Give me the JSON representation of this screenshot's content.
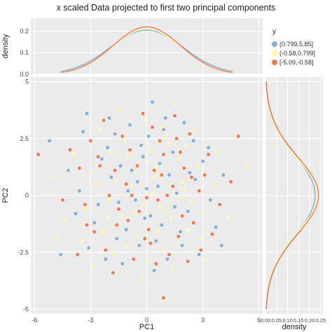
{
  "chart_data": {
    "type": "scatter",
    "title": "x scaled Data projected to first two principal components",
    "xlabel": "PC1",
    "ylabel": "PC2",
    "xlim": [
      -6.2,
      6.2
    ],
    "ylim": [
      -5.2,
      5.2
    ],
    "x_ticks": [
      "-6",
      "-3",
      "0",
      "3",
      "6"
    ],
    "x_tick_values": [
      -6,
      -3,
      0,
      3,
      6
    ],
    "y_ticks": [
      "-5",
      "-2.5",
      "0",
      "2.5",
      "5"
    ],
    "y_tick_values": [
      -5,
      -2.5,
      0,
      2.5,
      5
    ],
    "legend": {
      "title": "y",
      "position": "right",
      "entries": [
        "(0.799,5.85]",
        "(-0.58,0.799]",
        "[-5.09,-0.58]"
      ]
    },
    "colors": [
      "#7fb0d6",
      "#fdfbaa",
      "#f07a4a"
    ],
    "top_density": {
      "ylabel": "density",
      "ylim": [
        0,
        0.26
      ],
      "y_ticks": [
        "0.0",
        "0.1",
        "0.2"
      ],
      "y_tick_values": [
        0,
        0.1,
        0.2
      ],
      "mean": 0,
      "sd": [
        1.95,
        1.85,
        1.8
      ],
      "peak": [
        0.205,
        0.21,
        0.22
      ]
    },
    "right_density": {
      "xlabel": "density",
      "xlim": [
        0,
        0.26
      ],
      "x_ticks": [
        "0.00",
        "0.05",
        "0.10",
        "0.15",
        "0.20",
        "0.25"
      ],
      "x_tick_values": [
        0,
        0.05,
        0.1,
        0.15,
        0.2,
        0.25
      ],
      "mean": 0,
      "sd": [
        1.75,
        1.65,
        1.7
      ],
      "peak": [
        0.225,
        0.235,
        0.24
      ]
    },
    "series": [
      {
        "name": "(0.799,5.85]",
        "points": [
          [
            -4.6,
            -2.6
          ],
          [
            -3.2,
            3.6
          ],
          [
            -2.1,
            2.1
          ],
          [
            -1.5,
            -0.3
          ],
          [
            -0.8,
            1.1
          ],
          [
            0.2,
            -0.9
          ],
          [
            0.9,
            2.9
          ],
          [
            1.8,
            -1.6
          ],
          [
            2.6,
            0.7
          ],
          [
            3.4,
            -0.2
          ],
          [
            -2.8,
            -1.2
          ],
          [
            -1.9,
            0.8
          ],
          [
            -0.4,
            -2.2
          ],
          [
            0.6,
            0.4
          ],
          [
            1.4,
            1.9
          ],
          [
            2.2,
            -0.7
          ],
          [
            -3.6,
            0.2
          ],
          [
            -1.1,
            -1.5
          ],
          [
            0.1,
            2.6
          ],
          [
            1.1,
            -2.8
          ],
          [
            -2.4,
            1.6
          ],
          [
            3.0,
            1.5
          ],
          [
            -0.6,
            -0.2
          ],
          [
            0.8,
            -1.3
          ],
          [
            -1.7,
            2.7
          ],
          [
            2.5,
            2.4
          ],
          [
            -3.1,
            -2.3
          ],
          [
            1.6,
            0.1
          ],
          [
            -0.2,
            1.7
          ],
          [
            0.4,
            -3.3
          ],
          [
            4.1,
            0.9
          ],
          [
            -4.2,
            1.1
          ],
          [
            2.0,
            3.2
          ],
          [
            -1.3,
            -3.0
          ],
          [
            0.0,
            0.3
          ],
          [
            -2.6,
            -0.4
          ],
          [
            1.9,
            -2.2
          ],
          [
            -0.9,
            3.1
          ],
          [
            3.7,
            -1.4
          ],
          [
            -5.2,
            2.4
          ],
          [
            0.3,
            4.1
          ],
          [
            -1.6,
            -1.9
          ],
          [
            2.8,
            -2.6
          ],
          [
            -0.1,
            -1.0
          ],
          [
            1.2,
            0.9
          ],
          [
            -3.4,
            2.8
          ],
          [
            0.7,
            1.4
          ],
          [
            -2.2,
            -2.8
          ],
          [
            3.3,
            2.1
          ],
          [
            -0.5,
            0.6
          ],
          [
            2.3,
            1.0
          ],
          [
            -1.0,
            0.2
          ],
          [
            1.5,
            -0.5
          ],
          [
            -3.8,
            -0.8
          ],
          [
            0.5,
            -2.0
          ],
          [
            -2.0,
            3.4
          ],
          [
            4.0,
            -2.2
          ],
          [
            -0.3,
            2.2
          ],
          [
            1.0,
            3.4
          ],
          [
            -1.4,
            1.3
          ]
        ]
      },
      {
        "name": "(-0.58,0.799]",
        "points": [
          [
            -4.4,
            -1.1
          ],
          [
            -3.0,
            1.0
          ],
          [
            -2.3,
            -1.6
          ],
          [
            -1.2,
            2.4
          ],
          [
            -0.7,
            -0.8
          ],
          [
            0.5,
            1.2
          ],
          [
            1.3,
            -1.0
          ],
          [
            2.1,
            2.2
          ],
          [
            2.9,
            -1.9
          ],
          [
            3.6,
            0.4
          ],
          [
            -1.8,
            -2.5
          ],
          [
            -0.1,
            3.3
          ],
          [
            0.9,
            -2.4
          ],
          [
            1.7,
            1.6
          ],
          [
            -2.7,
            0.5
          ],
          [
            -0.5,
            -1.8
          ],
          [
            0.3,
            0.1
          ],
          [
            1.1,
            2.7
          ],
          [
            2.4,
            -0.3
          ],
          [
            -3.5,
            -2.0
          ],
          [
            -1.0,
            1.7
          ],
          [
            0.7,
            -0.5
          ],
          [
            1.9,
            0.6
          ],
          [
            -2.0,
            -0.2
          ],
          [
            0.0,
            -2.9
          ],
          [
            2.7,
            1.3
          ],
          [
            -1.6,
            0.7
          ],
          [
            4.4,
            -1.0
          ],
          [
            -5.0,
            0.8
          ],
          [
            1.5,
            4.0
          ],
          [
            -0.3,
            -3.6
          ],
          [
            3.2,
            -2.8
          ],
          [
            -2.5,
            2.9
          ],
          [
            0.8,
            3.0
          ],
          [
            -1.3,
            -0.9
          ],
          [
            2.2,
            -1.5
          ],
          [
            -3.9,
            1.8
          ],
          [
            0.2,
            2.0
          ],
          [
            1.4,
            -3.2
          ],
          [
            -0.8,
            0.4
          ],
          [
            3.8,
            1.9
          ],
          [
            -2.9,
            -3.1
          ],
          [
            5.4,
            1.3
          ],
          [
            -0.6,
            1.0
          ],
          [
            1.8,
            -0.1
          ],
          [
            -1.9,
            1.9
          ],
          [
            0.6,
            -1.6
          ],
          [
            2.6,
            2.9
          ],
          [
            -3.3,
            -0.6
          ],
          [
            0.4,
            0.8
          ],
          [
            -1.4,
            3.8
          ],
          [
            1.0,
            -0.7
          ],
          [
            -0.2,
            -0.4
          ],
          [
            2.0,
            0.3
          ],
          [
            -2.1,
            -1.0
          ],
          [
            3.0,
            -0.8
          ],
          [
            -4.8,
            -1.8
          ],
          [
            0.1,
            1.5
          ],
          [
            1.2,
            2.3
          ],
          [
            -1.1,
            -2.2
          ]
        ]
      },
      {
        "name": "[-5.09,-0.58]",
        "points": [
          [
            -5.8,
            1.8
          ],
          [
            -4.1,
            2.0
          ],
          [
            -3.3,
            -0.4
          ],
          [
            -2.5,
            1.3
          ],
          [
            -1.6,
            -1.3
          ],
          [
            -0.9,
            2.0
          ],
          [
            0.1,
            -1.5
          ],
          [
            0.8,
            0.9
          ],
          [
            1.6,
            2.5
          ],
          [
            2.5,
            -1.2
          ],
          [
            3.3,
            1.8
          ],
          [
            4.5,
            0.6
          ],
          [
            -2.2,
            -2.4
          ],
          [
            -1.1,
            0.5
          ],
          [
            0.3,
            3.0
          ],
          [
            1.2,
            -2.6
          ],
          [
            2.0,
            1.2
          ],
          [
            -0.4,
            -0.7
          ],
          [
            -3.0,
            2.4
          ],
          [
            0.6,
            -0.2
          ],
          [
            1.9,
            -0.9
          ],
          [
            -1.7,
            1.1
          ],
          [
            2.8,
            0.2
          ],
          [
            -0.7,
            -2.8
          ],
          [
            0.9,
            1.8
          ],
          [
            -2.8,
            -1.6
          ],
          [
            3.9,
            -0.4
          ],
          [
            -1.3,
            2.6
          ],
          [
            0.0,
            -0.1
          ],
          [
            1.4,
            0.4
          ],
          [
            -2.0,
            0.0
          ],
          [
            2.3,
            2.7
          ],
          [
            -4.5,
            -0.2
          ],
          [
            0.5,
            -3.0
          ],
          [
            -0.2,
            3.6
          ],
          [
            3.5,
            -1.7
          ],
          [
            -1.8,
            -3.4
          ],
          [
            1.7,
            -1.8
          ],
          [
            -3.6,
            1.2
          ],
          [
            0.7,
            2.4
          ],
          [
            4.9,
            2.6
          ],
          [
            -0.5,
            1.3
          ],
          [
            2.9,
            -2.4
          ],
          [
            -2.3,
            3.3
          ],
          [
            1.1,
            0.0
          ],
          [
            -1.0,
            -1.1
          ],
          [
            0.2,
            -2.1
          ],
          [
            2.4,
            0.8
          ],
          [
            -3.2,
            -1.3
          ],
          [
            1.5,
            3.5
          ],
          [
            -0.8,
            0.0
          ],
          [
            3.1,
            0.9
          ],
          [
            -2.6,
            1.7
          ],
          [
            0.4,
            1.1
          ],
          [
            -1.5,
            -0.6
          ],
          [
            1.8,
            1.9
          ],
          [
            -0.1,
            -1.9
          ],
          [
            2.2,
            -2.9
          ],
          [
            -3.7,
            -2.6
          ],
          [
            0.9,
            -4.5
          ]
        ]
      }
    ]
  }
}
